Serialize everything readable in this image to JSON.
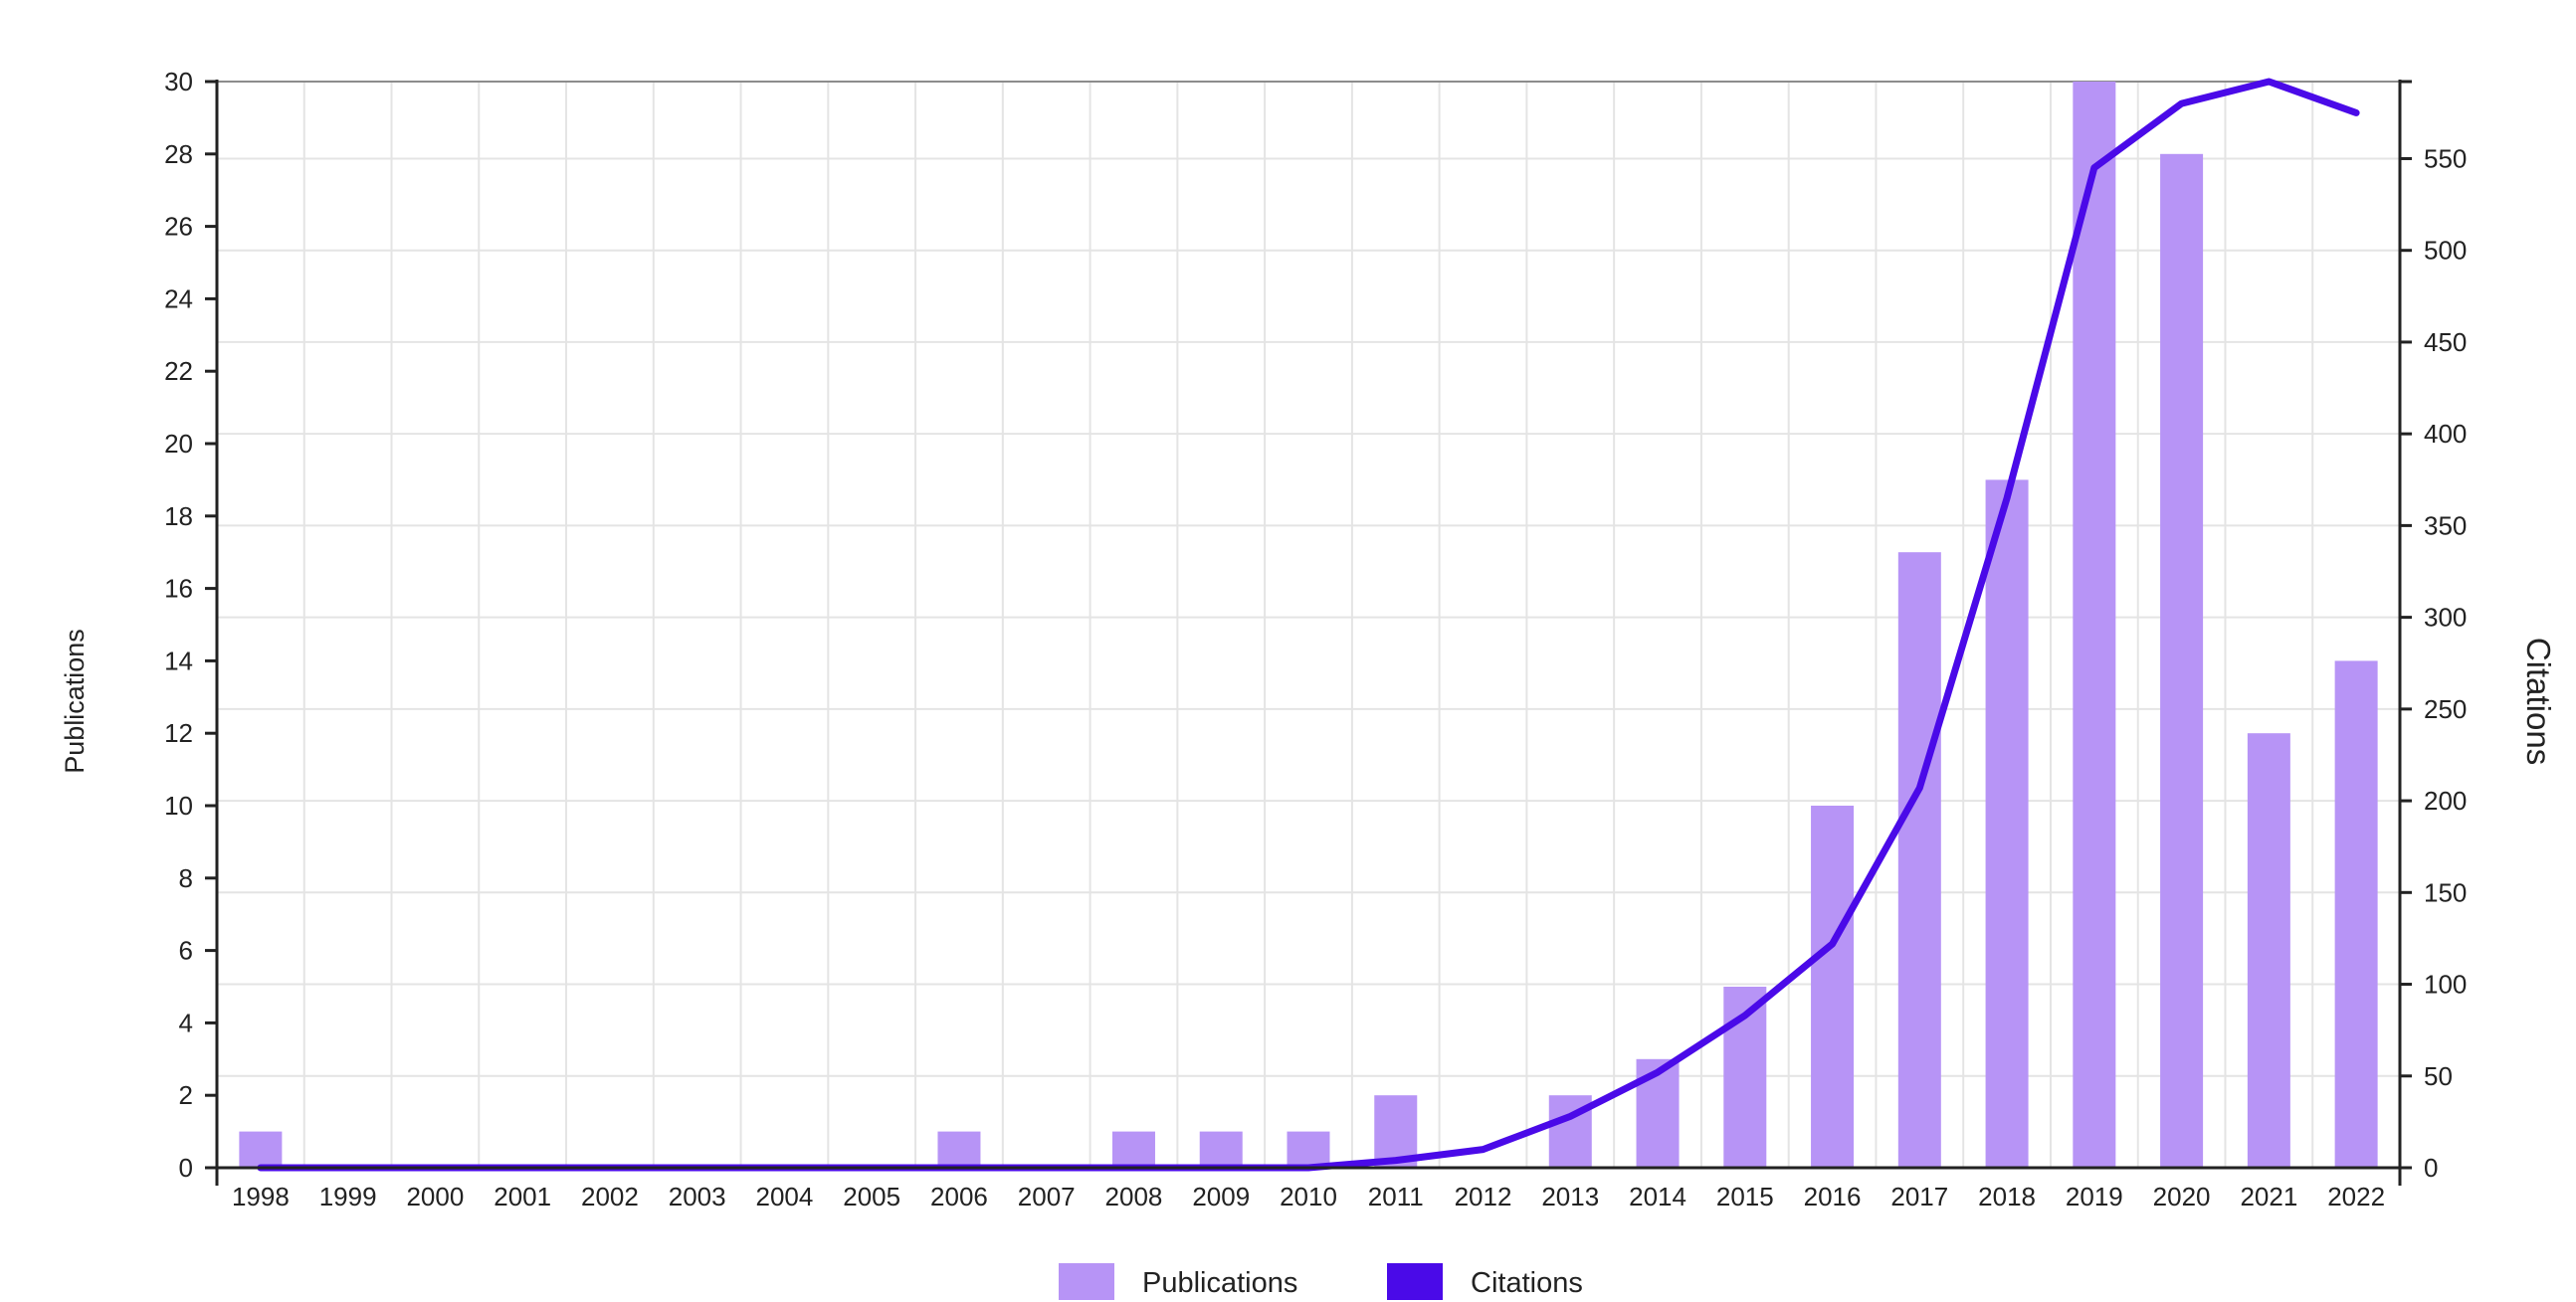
{
  "chart_data": {
    "type": "bar",
    "title": "",
    "xlabel": "",
    "ylabel": "Publications",
    "y2label": "Citations",
    "categories": [
      "1998",
      "1999",
      "2000",
      "2001",
      "2002",
      "2003",
      "2004",
      "2005",
      "2006",
      "2007",
      "2008",
      "2009",
      "2010",
      "2011",
      "2012",
      "2013",
      "2014",
      "2015",
      "2016",
      "2017",
      "2018",
      "2019",
      "2020",
      "2021",
      "2022"
    ],
    "series": [
      {
        "name": "Publications",
        "type": "bar",
        "axis": "left",
        "color": "#b794f6",
        "values": [
          1,
          0,
          0,
          0,
          0,
          0,
          0,
          0,
          1,
          0,
          1,
          1,
          1,
          2,
          0,
          2,
          3,
          5,
          10,
          17,
          19,
          30,
          28,
          12,
          14
        ]
      },
      {
        "name": "Citations",
        "type": "line",
        "axis": "right",
        "color": "#4a0ae8",
        "values": [
          0,
          0,
          0,
          0,
          0,
          0,
          0,
          0,
          0,
          0,
          0,
          0,
          0,
          4,
          10,
          28,
          52,
          83,
          122,
          207,
          365,
          545,
          580,
          592,
          575
        ]
      }
    ],
    "ylim": [
      0,
      30
    ],
    "y_ticks": [
      "0",
      "2",
      "4",
      "6",
      "8",
      "10",
      "12",
      "14",
      "16",
      "18",
      "20",
      "22",
      "24",
      "26",
      "28",
      "30"
    ],
    "y2lim": [
      0,
      592
    ],
    "y2_ticks": [
      "0",
      "50",
      "100",
      "150",
      "200",
      "250",
      "300",
      "350",
      "400",
      "450",
      "500",
      "550"
    ],
    "grid": true,
    "legend": {
      "position": "bottom-center",
      "entries": [
        "Publications",
        "Citations"
      ]
    }
  }
}
